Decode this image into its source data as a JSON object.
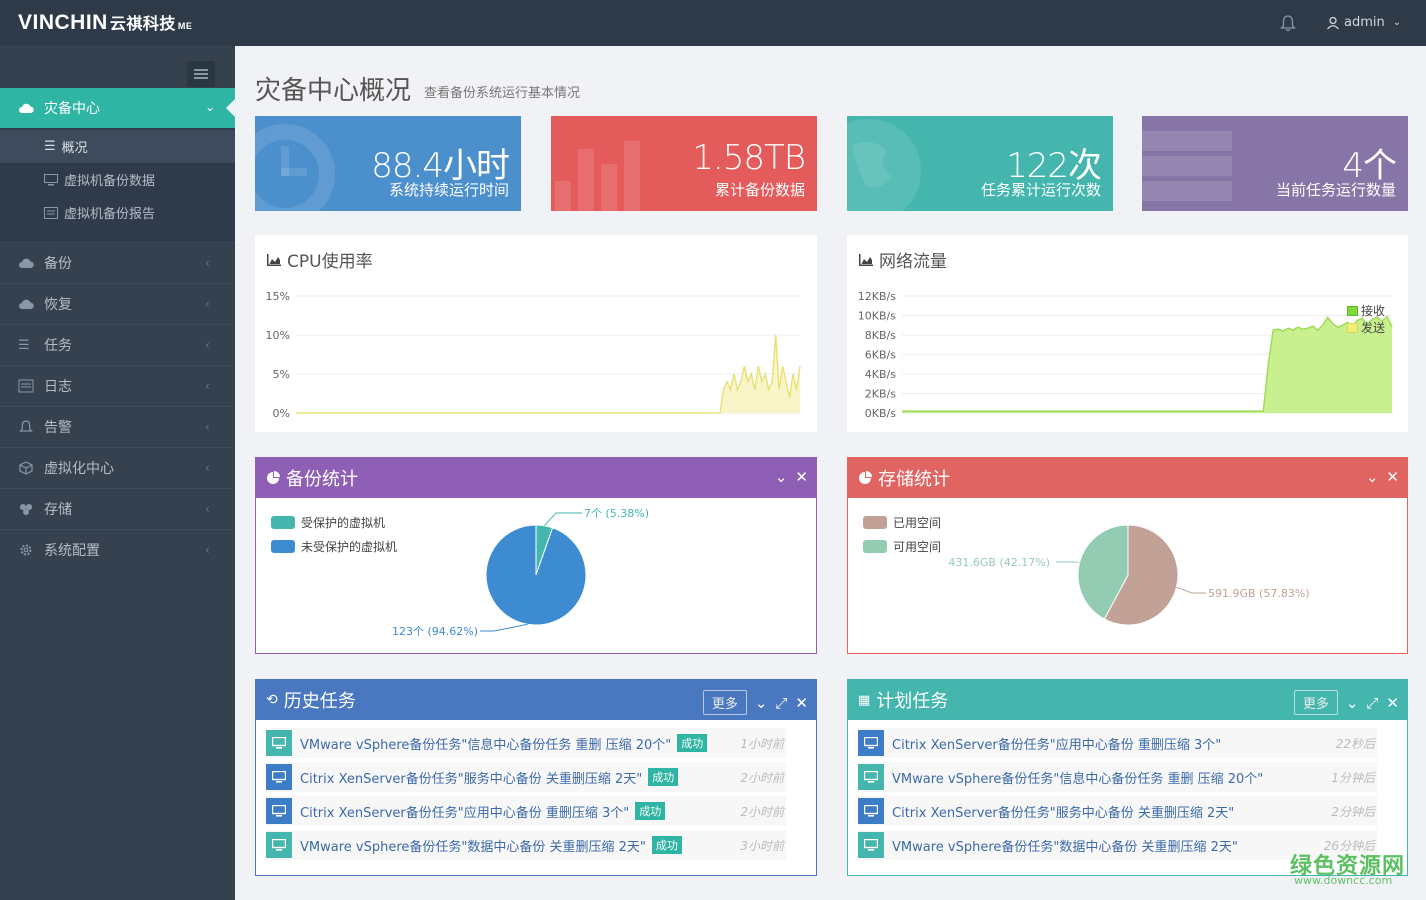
{
  "brand": {
    "logo_text": "VINCHIN",
    "logo_cn": "云祺科技",
    "logo_edition": "ME"
  },
  "header": {
    "user": "admin"
  },
  "sidebar": {
    "active": {
      "label": "灾备中心"
    },
    "sub_items": [
      {
        "label": "概况"
      },
      {
        "label": "虚拟机备份数据"
      },
      {
        "label": "虚拟机备份报告"
      }
    ],
    "items": [
      {
        "label": "备份",
        "icon": "cloud-upload-icon"
      },
      {
        "label": "恢复",
        "icon": "cloud-download-icon"
      },
      {
        "label": "任务",
        "icon": "list-icon"
      },
      {
        "label": "日志",
        "icon": "log-icon"
      },
      {
        "label": "告警",
        "icon": "bell-icon"
      },
      {
        "label": "虚拟化中心",
        "icon": "cube-icon"
      },
      {
        "label": "存储",
        "icon": "storage-icon"
      },
      {
        "label": "系统配置",
        "icon": "gear-icon"
      }
    ]
  },
  "page": {
    "title": "灾备中心概况",
    "subtitle": "查看备份系统运行基本情况"
  },
  "stats": [
    {
      "value": "88.4小时",
      "label": "系统持续运行时间",
      "color": "#4b8fcc"
    },
    {
      "value": "1.58TB",
      "label": "累计备份数据",
      "color": "#e35b5a"
    },
    {
      "value": "122次",
      "label": "任务累计运行次数",
      "color": "#44b6ae"
    },
    {
      "value": "4个",
      "label": "当前任务运行数量",
      "color": "#8775a7"
    }
  ],
  "cpu": {
    "title": "CPU使用率",
    "chart_data": {
      "type": "area",
      "yticks": [
        "15%",
        "10%",
        "5%",
        "0%"
      ],
      "ylim": [
        0,
        15
      ],
      "values": [
        0,
        0,
        0,
        0,
        0,
        0,
        0,
        0,
        0,
        0,
        0,
        0,
        0,
        0,
        0,
        0,
        0,
        0,
        0,
        0,
        0,
        0,
        0,
        0,
        0,
        0,
        0,
        0,
        0,
        0,
        0,
        0,
        0,
        0,
        0,
        0,
        0,
        0,
        0,
        0,
        0,
        0,
        0,
        0,
        0,
        0,
        0,
        0,
        0,
        0,
        0,
        0,
        0,
        0,
        0,
        0,
        0,
        0,
        0,
        0,
        0,
        0,
        0,
        0,
        0,
        0,
        0,
        0,
        0,
        0,
        0,
        0,
        0,
        0,
        0,
        0,
        0,
        0,
        0,
        0,
        0,
        0,
        0,
        0,
        0,
        0,
        0,
        0,
        0,
        0,
        0,
        0,
        0,
        0,
        0,
        0,
        0,
        0,
        0,
        0,
        0,
        0,
        0,
        0,
        0,
        0,
        0,
        0,
        0,
        0,
        0,
        0,
        0,
        0,
        0,
        0,
        0,
        0,
        0,
        0,
        0,
        0,
        0,
        3,
        4,
        3,
        5,
        3,
        4,
        6,
        4,
        5,
        3,
        6,
        4,
        5,
        3,
        4,
        10,
        3,
        6,
        4,
        2,
        5,
        3,
        6
      ]
    }
  },
  "network": {
    "title": "网络流量",
    "chart_data": {
      "type": "area",
      "yticks": [
        "12KB/s",
        "10KB/s",
        "8KB/s",
        "6KB/s",
        "4KB/s",
        "2KB/s",
        "0KB/s"
      ],
      "ylim": [
        0,
        12
      ],
      "legend": [
        {
          "name": "接收",
          "color": "#7fd93b"
        },
        {
          "name": "发送",
          "color": "#f0ee75"
        }
      ],
      "values": [
        0.2,
        0.2,
        0.2,
        0.2,
        0.2,
        0.2,
        0.2,
        0.2,
        0.2,
        0.2,
        0.2,
        0.2,
        0.2,
        0.2,
        0.2,
        0.2,
        0.2,
        0.2,
        0.2,
        0.2,
        0.2,
        0.2,
        0.2,
        0.2,
        0.2,
        0.2,
        0.2,
        0.2,
        0.2,
        0.2,
        0.2,
        0.2,
        0.2,
        0.2,
        0.2,
        0.2,
        0.2,
        0.2,
        0.2,
        0.2,
        0.2,
        0.2,
        0.2,
        0.2,
        0.2,
        0.2,
        0.2,
        0.2,
        0.2,
        0.2,
        0.2,
        0.2,
        0.2,
        0.2,
        0.2,
        0.2,
        0.2,
        0.2,
        0.2,
        0.2,
        0.2,
        0.2,
        0.2,
        0.2,
        0.2,
        0.2,
        0.2,
        0.2,
        0.2,
        0.2,
        0.2,
        0.2,
        0.2,
        0.2,
        5,
        8.5,
        8.6,
        8.4,
        8.7,
        8.5,
        8.8,
        8.6,
        8.7,
        8.9,
        8.5,
        9,
        9.8,
        9.2,
        8.8,
        9,
        9.3,
        8.9,
        9.5,
        9.7,
        9.1,
        9.6,
        9.8,
        9.4,
        9.9,
        8.8
      ]
    }
  },
  "backup_stats": {
    "title": "备份统计",
    "legend": [
      {
        "name": "受保护的虚拟机",
        "color": "#44b6ae"
      },
      {
        "name": "未受保护的虚拟机",
        "color": "#3d8bd0"
      }
    ],
    "chart_data": {
      "type": "pie",
      "slices": [
        {
          "name": "受保护的虚拟机",
          "value": 7,
          "label": "7个 (5.38%)",
          "color": "#44b6ae"
        },
        {
          "name": "未受保护的虚拟机",
          "value": 123,
          "label": "123个 (94.62%)",
          "color": "#3d8bd0"
        }
      ]
    }
  },
  "storage_stats": {
    "title": "存储统计",
    "legend": [
      {
        "name": "已用空间",
        "color": "#c2a196"
      },
      {
        "name": "可用空间",
        "color": "#93cbb3"
      }
    ],
    "chart_data": {
      "type": "pie",
      "slices": [
        {
          "name": "已用空间",
          "value": 57.83,
          "label": "591.9GB (57.83%)",
          "color": "#c2a196"
        },
        {
          "name": "可用空间",
          "value": 42.17,
          "label": "431.6GB (42.17%)",
          "color": "#93cbb3"
        }
      ]
    }
  },
  "history": {
    "title": "历史任务",
    "more": "更多",
    "rows": [
      {
        "text": "VMware vSphere备份任务\"信息中心备份任务 重删 压缩 20个\"",
        "badge": "成功",
        "time": "1小时前",
        "icon_color": "#44b6ae"
      },
      {
        "text": "Citrix XenServer备份任务\"服务中心备份 关重删压缩 2天\"",
        "badge": "成功",
        "time": "2小时前",
        "icon_color": "#3d7cc7"
      },
      {
        "text": "Citrix XenServer备份任务\"应用中心备份 重删压缩 3个\"",
        "badge": "成功",
        "time": "2小时前",
        "icon_color": "#3d7cc7"
      },
      {
        "text": "VMware vSphere备份任务\"数据中心备份 关重删压缩 2天\"",
        "badge": "成功",
        "time": "3小时前",
        "icon_color": "#44b6ae"
      }
    ]
  },
  "planned": {
    "title": "计划任务",
    "more": "更多",
    "rows": [
      {
        "text": "Citrix XenServer备份任务\"应用中心备份 重删压缩 3个\"",
        "time": "22秒后",
        "icon_color": "#3d7cc7"
      },
      {
        "text": "VMware vSphere备份任务\"信息中心备份任务 重删 压缩 20个\"",
        "time": "1分钟后",
        "icon_color": "#44b6ae"
      },
      {
        "text": "Citrix XenServer备份任务\"服务中心备份 关重删压缩 2天\"",
        "time": "2分钟后",
        "icon_color": "#3d7cc7"
      },
      {
        "text": "VMware vSphere备份任务\"数据中心备份 关重删压缩 2天\"",
        "time": "26分钟后",
        "icon_color": "#44b6ae"
      }
    ]
  },
  "watermark": {
    "text": "绿色资源网",
    "url": "www.downcc.com"
  }
}
